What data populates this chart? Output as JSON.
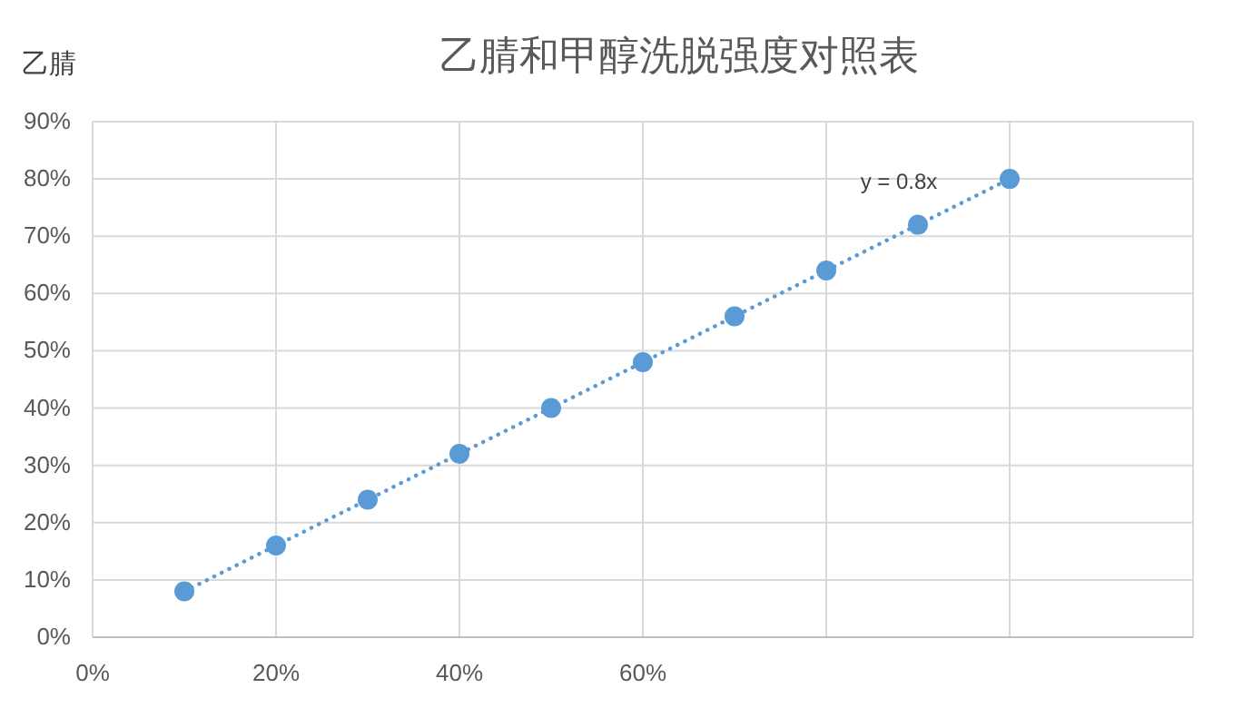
{
  "chart_data": {
    "type": "scatter",
    "title": "乙腈和甲醇洗脱强度对照表",
    "ylabel": "乙腈",
    "x": [
      10,
      20,
      30,
      40,
      50,
      60,
      70,
      80,
      90,
      100
    ],
    "series": [
      {
        "color": "#5b9bd5",
        "values": [
          8,
          16,
          24,
          32,
          40,
          48,
          56,
          64,
          72,
          80
        ]
      },
      {
        "type": "line",
        "color": "#5b9bd5",
        "line_style": "dotted",
        "marker": "none",
        "x": [
          10,
          100
        ],
        "values": [
          8,
          80
        ]
      }
    ],
    "marker": "circle",
    "annotations": [
      "y = 0.8x"
    ],
    "xlim": [
      0,
      120
    ],
    "ylim": [
      0,
      90
    ],
    "xticks": [
      {
        "value": 0,
        "label": "0%"
      },
      {
        "value": 20,
        "label": "20%"
      },
      {
        "value": 40,
        "label": "40%"
      },
      {
        "value": 60,
        "label": "60%"
      },
      {
        "value": 80,
        "label": null
      },
      {
        "value": 100,
        "label": null
      },
      {
        "value": 120,
        "label": null
      }
    ],
    "yticks": [
      {
        "value": 0,
        "label": "0%"
      },
      {
        "value": 10,
        "label": "10%"
      },
      {
        "value": 20,
        "label": "20%"
      },
      {
        "value": 30,
        "label": "30%"
      },
      {
        "value": 40,
        "label": "40%"
      },
      {
        "value": 50,
        "label": "50%"
      },
      {
        "value": 60,
        "label": "60%"
      },
      {
        "value": 70,
        "label": "70%"
      },
      {
        "value": 80,
        "label": "80%"
      },
      {
        "value": 90,
        "label": "90%"
      }
    ],
    "grid": true
  }
}
